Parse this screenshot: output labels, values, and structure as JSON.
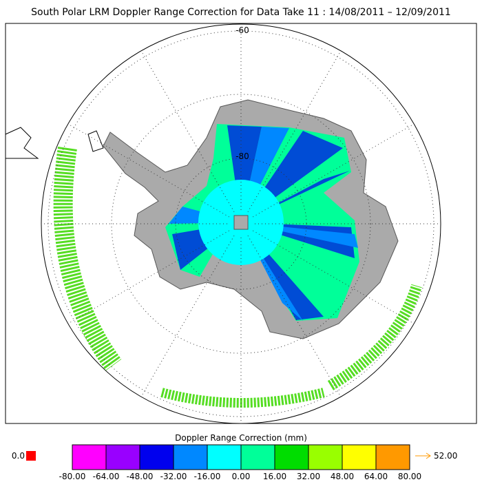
{
  "title": "South Polar LRM Doppler Range Correction for Data Take 11 : 14/08/2011 – 12/09/2011",
  "map": {
    "lat_labels": [
      "-60",
      "-80"
    ]
  },
  "colorbar": {
    "title": "Doppler Range Correction (mm)",
    "colors": [
      "#ff00ff",
      "#9900ff",
      "#0000ee",
      "#0088ff",
      "#00ffff",
      "#00ff99",
      "#00dd00",
      "#99ff00",
      "#ffff00",
      "#ff9900"
    ],
    "tick_labels": [
      "-80.00",
      "-64.00",
      "-48.00",
      "-32.00",
      "-16.00",
      "0.00",
      "16.00",
      "32.00",
      "48.00",
      "64.00",
      "80.00"
    ],
    "missing_label": "0.0",
    "overflow_label": "52.00"
  }
}
